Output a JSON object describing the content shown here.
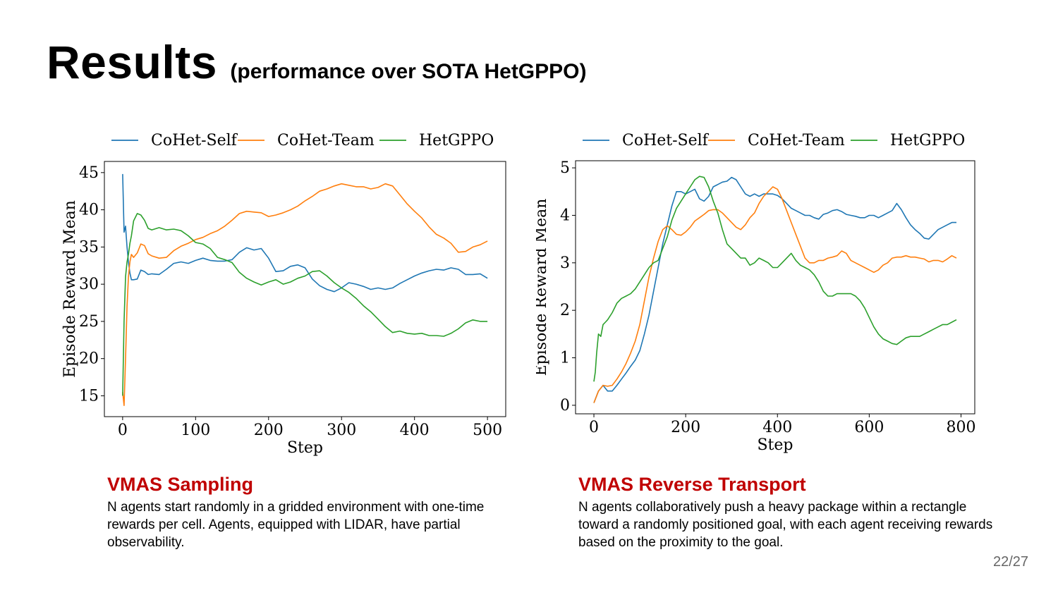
{
  "slide": {
    "title": "Results",
    "subtitle": "(performance over SOTA HetGPPO)",
    "page_number": "22/27"
  },
  "colors": {
    "accent_red": "#c00000"
  },
  "panels": [
    {
      "title": "VMAS Sampling",
      "description": "N agents start randomly in a gridded environment with one-time rewards per cell. Agents, equipped with LIDAR, have partial observability."
    },
    {
      "title": "VMAS Reverse Transport",
      "description": "N agents collaboratively push a heavy package within a rectangle toward a randomly positioned goal, with each agent receiving rewards based on the proximity to the goal."
    }
  ],
  "chart_data": [
    {
      "type": "line",
      "xlabel": "Step",
      "ylabel": "Episode Reward Mean",
      "xlim": [
        -25,
        525
      ],
      "ylim": [
        12.2,
        46.5
      ],
      "xticks": [
        0,
        100,
        200,
        300,
        400,
        500
      ],
      "yticks": [
        15,
        20,
        25,
        30,
        35,
        40,
        45
      ],
      "legend": "top",
      "series": [
        {
          "name": "CoHet-Self",
          "color": "#1f77b4",
          "x": [
            0,
            2,
            4,
            6,
            8,
            10,
            12,
            15,
            20,
            25,
            30,
            35,
            40,
            50,
            60,
            70,
            80,
            90,
            100,
            110,
            120,
            130,
            140,
            150,
            160,
            170,
            180,
            190,
            200,
            210,
            220,
            230,
            240,
            250,
            260,
            270,
            280,
            290,
            300,
            310,
            320,
            330,
            340,
            350,
            360,
            370,
            380,
            390,
            400,
            410,
            420,
            430,
            440,
            450,
            460,
            470,
            480,
            490,
            500
          ],
          "y": [
            44.8,
            37,
            37.8,
            35,
            33,
            31.5,
            30.6,
            30.6,
            30.7,
            31.9,
            31.7,
            31.3,
            31.4,
            31.3,
            32,
            32.8,
            33,
            32.8,
            33.2,
            33.5,
            33.2,
            33.1,
            33.1,
            33.3,
            34.3,
            34.9,
            34.6,
            34.8,
            33.5,
            31.7,
            31.8,
            32.4,
            32.6,
            32.2,
            30.7,
            29.8,
            29.3,
            29,
            29.5,
            30.2,
            30,
            29.7,
            29.3,
            29.5,
            29.3,
            29.5,
            30.1,
            30.6,
            31.1,
            31.5,
            31.8,
            32,
            31.9,
            32.2,
            32,
            31.3,
            31.3,
            31.4,
            30.8
          ]
        },
        {
          "name": "CoHet-Team",
          "color": "#ff7f0e",
          "x": [
            0,
            2,
            4,
            6,
            8,
            10,
            12,
            15,
            20,
            25,
            30,
            35,
            40,
            50,
            60,
            70,
            80,
            90,
            100,
            110,
            120,
            130,
            140,
            150,
            160,
            170,
            180,
            190,
            200,
            210,
            220,
            230,
            240,
            250,
            260,
            270,
            280,
            290,
            300,
            310,
            320,
            330,
            340,
            350,
            360,
            370,
            380,
            390,
            400,
            410,
            420,
            430,
            440,
            450,
            460,
            470,
            480,
            490,
            500
          ],
          "y": [
            15.5,
            13.7,
            20,
            27,
            31,
            33,
            34,
            33.6,
            34.2,
            35.4,
            35.2,
            34.1,
            33.8,
            33.5,
            33.6,
            34.5,
            35.1,
            35.5,
            36,
            36.3,
            36.8,
            37.2,
            37.8,
            38.6,
            39.5,
            39.8,
            39.7,
            39.6,
            39.1,
            39.3,
            39.6,
            40,
            40.5,
            41.2,
            41.8,
            42.5,
            42.8,
            43.2,
            43.5,
            43.3,
            43.1,
            43.1,
            42.8,
            43,
            43.5,
            43.2,
            42,
            40.8,
            39.8,
            38.9,
            37.7,
            36.7,
            36.2,
            35.5,
            34.3,
            34.4,
            35,
            35.3,
            35.8
          ]
        },
        {
          "name": "HetGPPO",
          "color": "#2ca02c",
          "x": [
            0,
            2,
            4,
            6,
            8,
            10,
            12,
            15,
            20,
            25,
            30,
            35,
            40,
            50,
            60,
            70,
            80,
            90,
            100,
            110,
            120,
            130,
            140,
            150,
            160,
            170,
            180,
            190,
            200,
            210,
            220,
            230,
            240,
            250,
            260,
            270,
            280,
            290,
            300,
            310,
            320,
            330,
            340,
            350,
            360,
            370,
            380,
            390,
            400,
            410,
            420,
            430,
            440,
            450,
            460,
            470,
            480,
            490,
            500
          ],
          "y": [
            15,
            25,
            31,
            33,
            34,
            35.5,
            36.5,
            38.5,
            39.5,
            39.3,
            38.6,
            37.5,
            37.3,
            37.6,
            37.3,
            37.4,
            37.2,
            36.5,
            35.6,
            35.4,
            34.8,
            33.6,
            33.3,
            32.9,
            31.6,
            30.8,
            30.3,
            29.9,
            30.3,
            30.6,
            30,
            30.3,
            30.8,
            31.1,
            31.7,
            31.8,
            31.1,
            30.2,
            29.5,
            28.9,
            28.1,
            27.1,
            26.3,
            25.3,
            24.3,
            23.5,
            23.7,
            23.4,
            23.3,
            23.4,
            23.1,
            23.1,
            23,
            23.4,
            24,
            24.8,
            25.2,
            25,
            25
          ]
        }
      ]
    },
    {
      "type": "line",
      "xlabel": "Step",
      "ylabel": "Episode Reward Mean",
      "xlim": [
        -40,
        830
      ],
      "ylim": [
        -0.18,
        5.15
      ],
      "xticks": [
        0,
        200,
        400,
        600,
        800
      ],
      "yticks": [
        0,
        1,
        2,
        3,
        4,
        5
      ],
      "legend": "top",
      "series": [
        {
          "name": "CoHet-Self",
          "color": "#1f77b4",
          "x": [
            0,
            10,
            20,
            30,
            40,
            50,
            60,
            70,
            80,
            90,
            100,
            110,
            120,
            130,
            140,
            150,
            160,
            170,
            180,
            190,
            200,
            210,
            220,
            230,
            240,
            250,
            260,
            270,
            280,
            290,
            300,
            310,
            320,
            330,
            340,
            350,
            360,
            370,
            380,
            390,
            400,
            410,
            420,
            430,
            440,
            450,
            460,
            470,
            480,
            490,
            500,
            510,
            520,
            530,
            540,
            550,
            560,
            570,
            580,
            590,
            600,
            610,
            620,
            630,
            640,
            650,
            660,
            670,
            680,
            690,
            700,
            710,
            720,
            730,
            740,
            750,
            760,
            770,
            780,
            790
          ],
          "y": [
            0.05,
            0.3,
            0.42,
            0.3,
            0.3,
            0.42,
            0.55,
            0.68,
            0.82,
            0.95,
            1.15,
            1.5,
            1.9,
            2.4,
            2.9,
            3.4,
            3.8,
            4.2,
            4.5,
            4.5,
            4.45,
            4.5,
            4.55,
            4.35,
            4.3,
            4.4,
            4.6,
            4.65,
            4.7,
            4.72,
            4.8,
            4.75,
            4.6,
            4.45,
            4.4,
            4.45,
            4.4,
            4.45,
            4.45,
            4.45,
            4.42,
            4.35,
            4.25,
            4.15,
            4.1,
            4.05,
            4,
            4,
            3.95,
            3.92,
            4.02,
            4.05,
            4.1,
            4.12,
            4.08,
            4.02,
            4,
            3.98,
            3.95,
            3.95,
            4,
            4,
            3.95,
            4,
            4.05,
            4.1,
            4.25,
            4.12,
            3.95,
            3.8,
            3.7,
            3.62,
            3.52,
            3.5,
            3.6,
            3.7,
            3.75,
            3.8,
            3.85,
            3.85
          ]
        },
        {
          "name": "CoHet-Team",
          "color": "#ff7f0e",
          "x": [
            0,
            10,
            20,
            30,
            40,
            50,
            60,
            70,
            80,
            90,
            100,
            110,
            120,
            130,
            140,
            150,
            160,
            170,
            180,
            190,
            200,
            210,
            220,
            230,
            240,
            250,
            260,
            270,
            280,
            290,
            300,
            310,
            320,
            330,
            340,
            350,
            360,
            370,
            380,
            390,
            400,
            410,
            420,
            430,
            440,
            450,
            460,
            470,
            480,
            490,
            500,
            510,
            520,
            530,
            540,
            550,
            560,
            570,
            580,
            590,
            600,
            610,
            620,
            630,
            640,
            650,
            660,
            670,
            680,
            690,
            700,
            710,
            720,
            730,
            740,
            750,
            760,
            770,
            780,
            790
          ],
          "y": [
            0.05,
            0.3,
            0.42,
            0.4,
            0.42,
            0.55,
            0.7,
            0.88,
            1.1,
            1.35,
            1.7,
            2.2,
            2.7,
            3.1,
            3.45,
            3.7,
            3.78,
            3.7,
            3.6,
            3.58,
            3.65,
            3.75,
            3.88,
            3.95,
            4.02,
            4.1,
            4.12,
            4.12,
            4.05,
            3.95,
            3.85,
            3.75,
            3.7,
            3.8,
            3.95,
            4.05,
            4.25,
            4.4,
            4.5,
            4.6,
            4.55,
            4.35,
            4.1,
            3.85,
            3.6,
            3.35,
            3.1,
            3,
            3,
            3.05,
            3.05,
            3.1,
            3.12,
            3.15,
            3.25,
            3.2,
            3.05,
            3,
            2.95,
            2.9,
            2.85,
            2.8,
            2.85,
            2.95,
            3,
            3.1,
            3.12,
            3.12,
            3.15,
            3.12,
            3.12,
            3.1,
            3.08,
            3.02,
            3.05,
            3.05,
            3.02,
            3.08,
            3.15,
            3.1
          ]
        },
        {
          "name": "HetGPPO",
          "color": "#2ca02c",
          "x": [
            0,
            3,
            6,
            10,
            15,
            20,
            25,
            30,
            40,
            50,
            60,
            70,
            80,
            90,
            100,
            110,
            120,
            130,
            140,
            150,
            160,
            170,
            180,
            190,
            200,
            210,
            220,
            230,
            240,
            250,
            260,
            270,
            280,
            290,
            300,
            310,
            320,
            330,
            340,
            350,
            360,
            370,
            380,
            390,
            400,
            410,
            420,
            430,
            440,
            450,
            460,
            470,
            480,
            490,
            500,
            510,
            520,
            530,
            540,
            550,
            560,
            570,
            580,
            590,
            600,
            610,
            620,
            630,
            640,
            650,
            660,
            670,
            680,
            690,
            700,
            710,
            720,
            730,
            740,
            750,
            760,
            770,
            780,
            790
          ],
          "y": [
            0.5,
            0.7,
            1.1,
            1.5,
            1.45,
            1.7,
            1.75,
            1.8,
            1.95,
            2.15,
            2.25,
            2.3,
            2.35,
            2.45,
            2.6,
            2.75,
            2.9,
            3,
            3.05,
            3.3,
            3.55,
            3.9,
            4.15,
            4.3,
            4.45,
            4.6,
            4.75,
            4.82,
            4.8,
            4.6,
            4.3,
            4.05,
            3.7,
            3.4,
            3.3,
            3.2,
            3.1,
            3.1,
            2.95,
            3,
            3.1,
            3.05,
            3,
            2.9,
            2.9,
            3,
            3.1,
            3.2,
            3.05,
            2.95,
            2.9,
            2.85,
            2.75,
            2.6,
            2.4,
            2.3,
            2.3,
            2.35,
            2.35,
            2.35,
            2.35,
            2.3,
            2.2,
            2.05,
            1.85,
            1.65,
            1.5,
            1.4,
            1.35,
            1.3,
            1.28,
            1.35,
            1.42,
            1.45,
            1.45,
            1.45,
            1.5,
            1.55,
            1.6,
            1.65,
            1.7,
            1.7,
            1.75,
            1.8
          ]
        }
      ]
    }
  ]
}
